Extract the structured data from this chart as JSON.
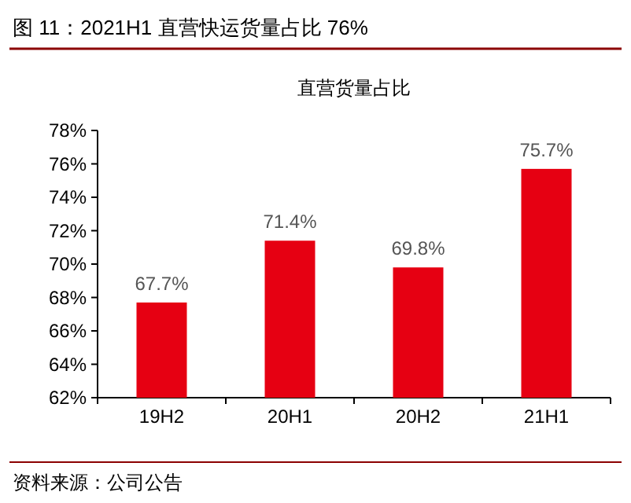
{
  "chart_data": {
    "type": "bar",
    "title": "图 11：2021H1 直营快运货量占比 76%",
    "subtitle": "直营货量占比",
    "categories": [
      "19H2",
      "20H1",
      "20H2",
      "21H1"
    ],
    "values": [
      67.7,
      71.4,
      69.8,
      75.7
    ],
    "value_labels": [
      "67.7%",
      "71.4%",
      "69.8%",
      "75.7%"
    ],
    "color": "#e60012",
    "ylim": [
      62,
      78
    ],
    "yticks": [
      {
        "value": 62,
        "label": "62%"
      },
      {
        "value": 64,
        "label": "64%"
      },
      {
        "value": 66,
        "label": "66%"
      },
      {
        "value": 68,
        "label": "68%"
      },
      {
        "value": 70,
        "label": "70%"
      },
      {
        "value": 72,
        "label": "72%"
      },
      {
        "value": 74,
        "label": "74%"
      },
      {
        "value": 76,
        "label": "76%"
      },
      {
        "value": 78,
        "label": "78%"
      }
    ],
    "grid": false,
    "annotations": [
      "资料来源：公司公告"
    ]
  }
}
